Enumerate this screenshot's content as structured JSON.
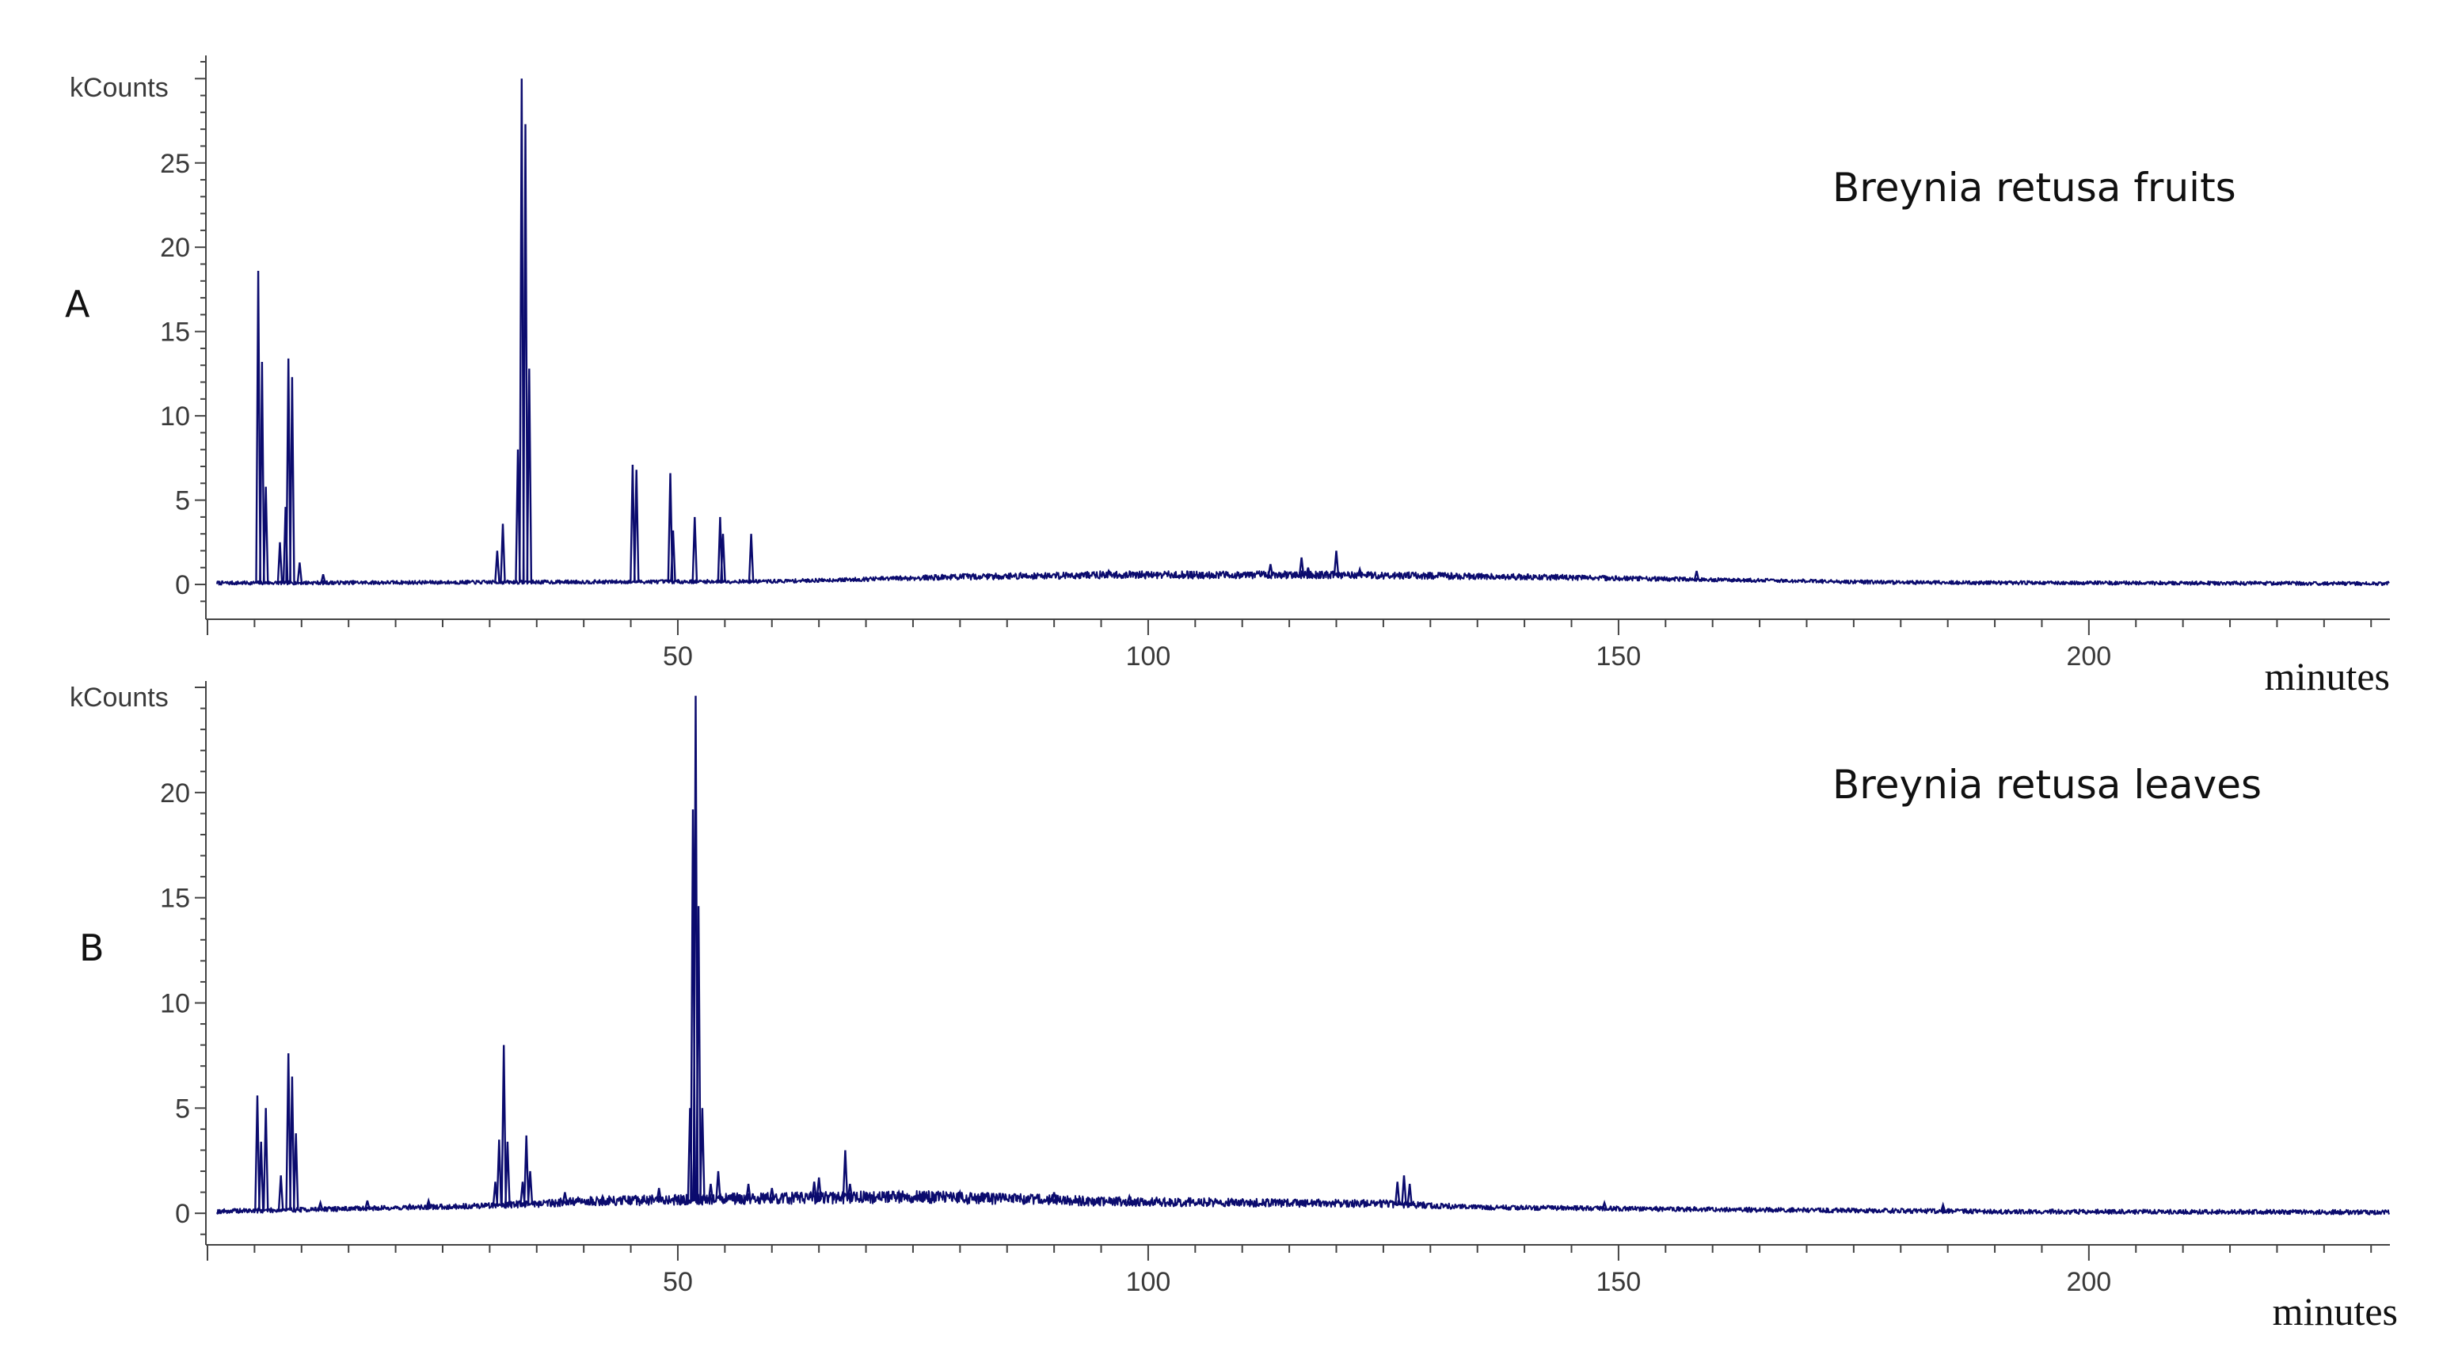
{
  "chart_data": [
    {
      "type": "line",
      "panel_label": "A",
      "title": "Breynia retusa fruits",
      "ylabel": "kCounts",
      "xlabel": "minutes",
      "xlim": [
        0,
        232
      ],
      "ylim": [
        -1.5,
        31
      ],
      "xticks": [
        50,
        100,
        150,
        200
      ],
      "yticks": [
        0,
        5,
        10,
        15,
        20,
        25
      ],
      "color": "#0b0b6e",
      "series": [
        {
          "peaks": [
            [
              5.4,
              18.6
            ],
            [
              5.8,
              13.2
            ],
            [
              6.2,
              5.8
            ],
            [
              7.7,
              2.5
            ],
            [
              8.3,
              4.6
            ],
            [
              8.6,
              13.4
            ],
            [
              9.0,
              12.3
            ],
            [
              9.8,
              1.3
            ],
            [
              12.3,
              0.6
            ],
            [
              30.8,
              2.0
            ],
            [
              31.4,
              3.6
            ],
            [
              33.0,
              8.0
            ],
            [
              33.4,
              30.0
            ],
            [
              33.8,
              27.3
            ],
            [
              34.2,
              12.8
            ],
            [
              45.2,
              7.1
            ],
            [
              45.6,
              6.8
            ],
            [
              49.2,
              6.6
            ],
            [
              49.5,
              3.2
            ],
            [
              51.8,
              4.0
            ],
            [
              54.5,
              4.0
            ],
            [
              54.8,
              3.0
            ],
            [
              57.8,
              3.0
            ],
            [
              95.8,
              0.8
            ],
            [
              113.0,
              1.2
            ],
            [
              116.3,
              1.6
            ],
            [
              117.0,
              1.0
            ],
            [
              120.0,
              2.0
            ],
            [
              122.5,
              0.9
            ],
            [
              158.3,
              0.8
            ]
          ],
          "baseline": [
            [
              0,
              0.05
            ],
            [
              60,
              0.15
            ],
            [
              80,
              0.4
            ],
            [
              95,
              0.5
            ],
            [
              120,
              0.5
            ],
            [
              140,
              0.4
            ],
            [
              160,
              0.25
            ],
            [
              180,
              0.08
            ],
            [
              232,
              0.02
            ]
          ]
        }
      ]
    },
    {
      "type": "line",
      "panel_label": "B",
      "title": "Breynia retusa leaves",
      "ylabel": "kCounts",
      "xlabel": "minutes",
      "xlim": [
        0,
        232
      ],
      "ylim": [
        -1.5,
        25
      ],
      "xticks": [
        50,
        100,
        150,
        200
      ],
      "yticks": [
        0,
        5,
        10,
        15,
        20
      ],
      "color": "#0b0b6e",
      "series": [
        {
          "peaks": [
            [
              5.3,
              5.6
            ],
            [
              5.7,
              3.4
            ],
            [
              6.2,
              5.0
            ],
            [
              7.8,
              1.8
            ],
            [
              8.6,
              7.6
            ],
            [
              9.0,
              6.5
            ],
            [
              9.4,
              3.8
            ],
            [
              12.0,
              0.5
            ],
            [
              17.0,
              0.6
            ],
            [
              21.5,
              0.4
            ],
            [
              23.5,
              0.6
            ],
            [
              30.6,
              1.5
            ],
            [
              31.0,
              3.5
            ],
            [
              31.5,
              8.0
            ],
            [
              31.9,
              3.4
            ],
            [
              33.5,
              1.5
            ],
            [
              33.9,
              3.7
            ],
            [
              34.3,
              2.0
            ],
            [
              38.0,
              1.0
            ],
            [
              42.0,
              0.8
            ],
            [
              48.0,
              1.2
            ],
            [
              51.3,
              5.0
            ],
            [
              51.6,
              19.2
            ],
            [
              51.9,
              24.6
            ],
            [
              52.2,
              14.6
            ],
            [
              52.6,
              5.0
            ],
            [
              53.5,
              1.4
            ],
            [
              54.3,
              2.0
            ],
            [
              57.5,
              1.4
            ],
            [
              60.0,
              1.2
            ],
            [
              64.5,
              1.5
            ],
            [
              65.0,
              1.7
            ],
            [
              67.8,
              3.0
            ],
            [
              68.3,
              1.4
            ],
            [
              73.5,
              1.0
            ],
            [
              80.0,
              1.0
            ],
            [
              90.0,
              1.0
            ],
            [
              98.0,
              0.8
            ],
            [
              126.5,
              1.5
            ],
            [
              127.2,
              1.8
            ],
            [
              127.8,
              1.4
            ],
            [
              148.5,
              0.5
            ],
            [
              154.0,
              0.3
            ],
            [
              184.5,
              0.4
            ]
          ],
          "baseline": [
            [
              0,
              0.05
            ],
            [
              28,
              0.3
            ],
            [
              40,
              0.5
            ],
            [
              55,
              0.6
            ],
            [
              75,
              0.7
            ],
            [
              95,
              0.5
            ],
            [
              125,
              0.4
            ],
            [
              135,
              0.25
            ],
            [
              160,
              0.15
            ],
            [
              190,
              0.05
            ],
            [
              232,
              0.02
            ]
          ]
        }
      ]
    }
  ]
}
